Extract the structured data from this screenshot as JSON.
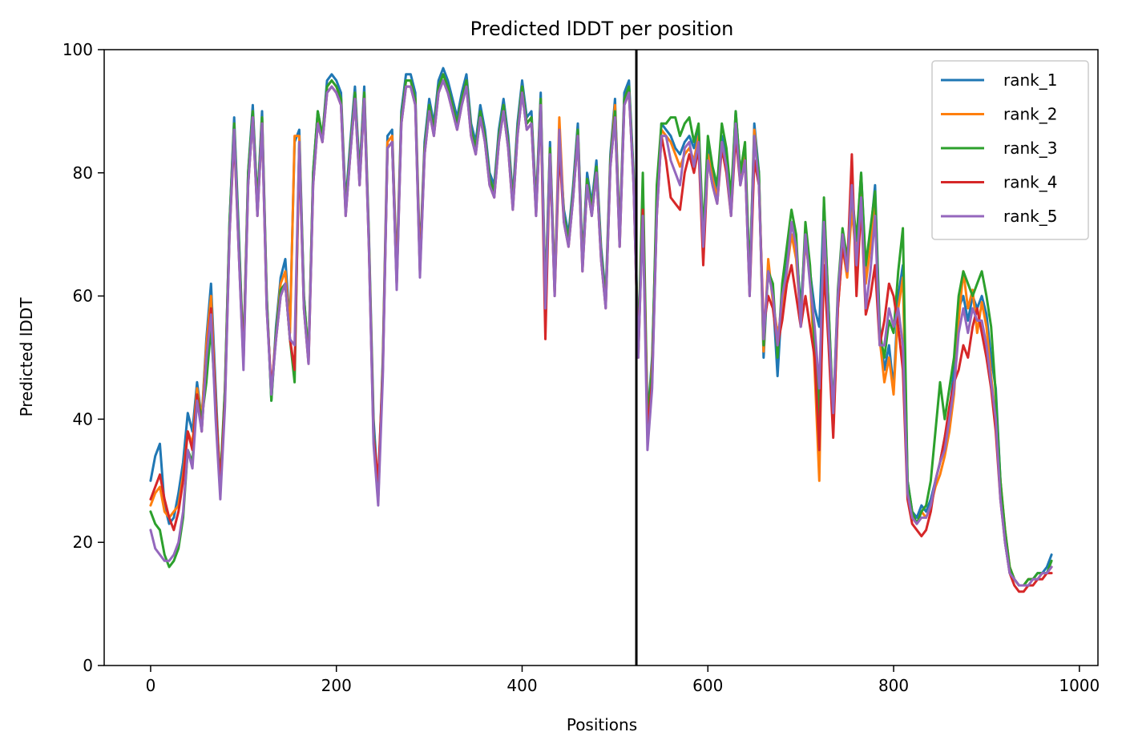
{
  "chart_data": {
    "type": "line",
    "title": "Predicted lDDT per position",
    "xlabel": "Positions",
    "ylabel": "Predicted lDDT",
    "xlim": [
      -50,
      1020
    ],
    "ylim": [
      0,
      100
    ],
    "xticks": [
      0,
      200,
      400,
      600,
      800,
      1000
    ],
    "yticks": [
      0,
      20,
      40,
      60,
      80,
      100
    ],
    "grid": false,
    "legend_position": "upper right",
    "vline": 523,
    "x": [
      0,
      5,
      10,
      15,
      20,
      25,
      30,
      35,
      40,
      45,
      50,
      55,
      60,
      65,
      70,
      75,
      80,
      85,
      90,
      95,
      100,
      105,
      110,
      115,
      120,
      125,
      130,
      135,
      140,
      145,
      150,
      155,
      160,
      165,
      170,
      175,
      180,
      185,
      190,
      195,
      200,
      205,
      210,
      215,
      220,
      225,
      230,
      235,
      240,
      245,
      250,
      255,
      260,
      265,
      270,
      275,
      280,
      285,
      290,
      295,
      300,
      305,
      310,
      315,
      320,
      325,
      330,
      335,
      340,
      345,
      350,
      355,
      360,
      365,
      370,
      375,
      380,
      385,
      390,
      395,
      400,
      405,
      410,
      415,
      420,
      425,
      430,
      435,
      440,
      445,
      450,
      455,
      460,
      465,
      470,
      475,
      480,
      485,
      490,
      495,
      500,
      505,
      510,
      515,
      520,
      525,
      530,
      535,
      540,
      545,
      550,
      555,
      560,
      565,
      570,
      575,
      580,
      585,
      590,
      595,
      600,
      605,
      610,
      615,
      620,
      625,
      630,
      635,
      640,
      645,
      650,
      655,
      660,
      665,
      670,
      675,
      680,
      685,
      690,
      695,
      700,
      705,
      710,
      715,
      720,
      725,
      730,
      735,
      740,
      745,
      750,
      755,
      760,
      765,
      770,
      775,
      780,
      785,
      790,
      795,
      800,
      805,
      810,
      815,
      820,
      825,
      830,
      835,
      840,
      845,
      850,
      855,
      860,
      865,
      870,
      875,
      880,
      885,
      890,
      895,
      900,
      905,
      910,
      915,
      920,
      925,
      930,
      935,
      940,
      945,
      950,
      955,
      960,
      965,
      970
    ],
    "series": [
      {
        "name": "rank_1",
        "color": "#1f77b4",
        "values": [
          30,
          34,
          36,
          26,
          23,
          24,
          28,
          33,
          41,
          38,
          46,
          40,
          53,
          62,
          45,
          28,
          45,
          72,
          89,
          70,
          50,
          80,
          91,
          75,
          90,
          60,
          43,
          55,
          63,
          66,
          55,
          85,
          87,
          60,
          50,
          80,
          90,
          86,
          95,
          96,
          95,
          93,
          75,
          85,
          94,
          80,
          94,
          70,
          40,
          28,
          50,
          86,
          87,
          64,
          90,
          96,
          96,
          93,
          66,
          85,
          92,
          88,
          95,
          97,
          95,
          92,
          89,
          93,
          96,
          88,
          85,
          91,
          87,
          80,
          78,
          87,
          92,
          86,
          76,
          88,
          95,
          89,
          90,
          75,
          93,
          60,
          85,
          62,
          85,
          74,
          70,
          78,
          88,
          66,
          80,
          75,
          82,
          68,
          60,
          83,
          92,
          70,
          93,
          95,
          80,
          52,
          75,
          40,
          50,
          75,
          88,
          87,
          86,
          84,
          83,
          85,
          86,
          84,
          87,
          67,
          84,
          80,
          77,
          86,
          82,
          75,
          90,
          80,
          84,
          62,
          88,
          80,
          50,
          65,
          60,
          47,
          60,
          65,
          72,
          68,
          58,
          70,
          64,
          58,
          55,
          75,
          58,
          40,
          60,
          70,
          65,
          76,
          68,
          80,
          64,
          70,
          78,
          55,
          48,
          52,
          45,
          60,
          65,
          30,
          25,
          24,
          26,
          25,
          27,
          30,
          33,
          37,
          41,
          48,
          58,
          60,
          56,
          60,
          58,
          60,
          57,
          50,
          45,
          30,
          20,
          15,
          14,
          13,
          13,
          14,
          14,
          15,
          15,
          16,
          18
        ]
      },
      {
        "name": "rank_2",
        "color": "#ff7f0e",
        "values": [
          26,
          28,
          29,
          25,
          24,
          25,
          26,
          31,
          38,
          36,
          45,
          40,
          52,
          60,
          43,
          29,
          44,
          71,
          88,
          68,
          50,
          79,
          90,
          74,
          89,
          59,
          44,
          54,
          62,
          64,
          54,
          86,
          86,
          59,
          50,
          79,
          89,
          86,
          94,
          95,
          94,
          92,
          74,
          84,
          93,
          79,
          93,
          69,
          38,
          27,
          49,
          85,
          86,
          63,
          89,
          95,
          95,
          92,
          65,
          84,
          91,
          87,
          94,
          96,
          94,
          91,
          88,
          92,
          95,
          87,
          84,
          90,
          86,
          79,
          77,
          86,
          91,
          85,
          75,
          87,
          94,
          88,
          89,
          74,
          92,
          59,
          84,
          61,
          89,
          73,
          69,
          77,
          87,
          65,
          79,
          74,
          81,
          67,
          59,
          82,
          91,
          69,
          92,
          94,
          79,
          51,
          74,
          39,
          49,
          74,
          87,
          86,
          85,
          83,
          81,
          83,
          84,
          82,
          86,
          66,
          83,
          79,
          76,
          85,
          81,
          74,
          89,
          79,
          83,
          61,
          87,
          79,
          51,
          66,
          59,
          54,
          57,
          64,
          70,
          66,
          56,
          69,
          63,
          48,
          30,
          72,
          56,
          38,
          58,
          68,
          63,
          74,
          66,
          78,
          62,
          68,
          76,
          53,
          46,
          50,
          44,
          58,
          63,
          29,
          24,
          23,
          25,
          24,
          26,
          29,
          31,
          34,
          38,
          44,
          56,
          64,
          58,
          61,
          54,
          59,
          55,
          47,
          40,
          30,
          22,
          16,
          14,
          13,
          13,
          14,
          14,
          14,
          15,
          15,
          16
        ]
      },
      {
        "name": "rank_3",
        "color": "#2ca02c",
        "values": [
          25,
          23,
          22,
          18,
          16,
          17,
          19,
          24,
          35,
          33,
          44,
          40,
          46,
          55,
          42,
          30,
          45,
          72,
          88,
          69,
          50,
          80,
          90,
          75,
          89,
          60,
          43,
          54,
          61,
          62,
          53,
          46,
          85,
          60,
          50,
          80,
          90,
          86,
          94,
          95,
          94,
          92,
          74,
          84,
          93,
          79,
          93,
          69,
          38,
          27,
          49,
          84,
          85,
          62,
          89,
          95,
          95,
          92,
          64,
          84,
          91,
          87,
          94,
          96,
          94,
          91,
          88,
          92,
          95,
          87,
          84,
          90,
          86,
          79,
          77,
          86,
          91,
          85,
          75,
          87,
          94,
          88,
          89,
          74,
          92,
          59,
          84,
          61,
          85,
          73,
          69,
          77,
          87,
          65,
          79,
          74,
          81,
          67,
          59,
          82,
          90,
          69,
          92,
          94,
          79,
          51,
          80,
          40,
          48,
          78,
          88,
          88,
          89,
          89,
          86,
          88,
          89,
          85,
          88,
          70,
          86,
          81,
          78,
          88,
          84,
          76,
          90,
          80,
          85,
          63,
          86,
          80,
          52,
          64,
          62,
          50,
          62,
          68,
          74,
          70,
          56,
          72,
          65,
          52,
          40,
          76,
          58,
          41,
          61,
          71,
          66,
          77,
          69,
          80,
          65,
          71,
          77,
          54,
          50,
          56,
          54,
          64,
          71,
          30,
          25,
          23,
          25,
          26,
          30,
          38,
          46,
          40,
          45,
          50,
          60,
          64,
          62,
          60,
          62,
          64,
          60,
          55,
          44,
          30,
          22,
          16,
          14,
          13,
          13,
          14,
          14,
          15,
          15,
          15,
          17
        ]
      },
      {
        "name": "rank_4",
        "color": "#d62728",
        "values": [
          27,
          29,
          31,
          27,
          24,
          22,
          25,
          30,
          38,
          35,
          44,
          38,
          50,
          58,
          42,
          29,
          43,
          70,
          86,
          67,
          49,
          78,
          89,
          73,
          88,
          58,
          45,
          53,
          60,
          62,
          53,
          48,
          84,
          58,
          49,
          78,
          88,
          85,
          93,
          94,
          93,
          91,
          73,
          83,
          92,
          78,
          92,
          68,
          37,
          30,
          48,
          84,
          85,
          62,
          88,
          94,
          94,
          91,
          64,
          83,
          90,
          86,
          93,
          95,
          93,
          90,
          87,
          91,
          94,
          86,
          83,
          89,
          85,
          78,
          76,
          85,
          90,
          84,
          74,
          86,
          93,
          87,
          88,
          73,
          91,
          53,
          83,
          60,
          84,
          72,
          68,
          76,
          86,
          64,
          78,
          73,
          80,
          66,
          58,
          81,
          89,
          68,
          91,
          93,
          78,
          50,
          74,
          38,
          46,
          73,
          86,
          82,
          76,
          75,
          74,
          80,
          83,
          80,
          84,
          65,
          82,
          78,
          75,
          84,
          80,
          73,
          86,
          78,
          82,
          60,
          82,
          78,
          55,
          60,
          58,
          52,
          56,
          62,
          65,
          60,
          55,
          60,
          55,
          50,
          35,
          65,
          52,
          37,
          58,
          68,
          64,
          83,
          60,
          75,
          57,
          60,
          65,
          52,
          56,
          62,
          60,
          55,
          48,
          27,
          23,
          22,
          21,
          22,
          25,
          30,
          33,
          37,
          42,
          46,
          48,
          52,
          50,
          55,
          58,
          54,
          50,
          45,
          38,
          27,
          20,
          15,
          13,
          12,
          12,
          13,
          13,
          14,
          14,
          15,
          15
        ]
      },
      {
        "name": "rank_5",
        "color": "#9467bd",
        "values": [
          22,
          19,
          18,
          17,
          17,
          18,
          20,
          25,
          35,
          32,
          43,
          38,
          50,
          57,
          40,
          27,
          42,
          70,
          87,
          67,
          48,
          78,
          89,
          73,
          88,
          58,
          44,
          53,
          60,
          62,
          53,
          52,
          85,
          58,
          49,
          78,
          88,
          85,
          93,
          94,
          93,
          91,
          73,
          83,
          92,
          78,
          92,
          68,
          36,
          26,
          47,
          84,
          85,
          61,
          88,
          94,
          94,
          91,
          63,
          83,
          90,
          86,
          93,
          95,
          93,
          90,
          87,
          91,
          94,
          86,
          83,
          89,
          85,
          78,
          76,
          85,
          90,
          84,
          74,
          86,
          93,
          87,
          88,
          73,
          91,
          58,
          83,
          60,
          87,
          72,
          68,
          76,
          86,
          64,
          78,
          73,
          80,
          66,
          58,
          81,
          89,
          68,
          91,
          93,
          78,
          50,
          73,
          35,
          45,
          73,
          86,
          86,
          82,
          80,
          78,
          84,
          85,
          81,
          85,
          68,
          82,
          78,
          75,
          85,
          81,
          73,
          88,
          78,
          82,
          60,
          86,
          78,
          53,
          64,
          60,
          52,
          60,
          64,
          72,
          68,
          55,
          70,
          62,
          55,
          45,
          72,
          55,
          41,
          60,
          70,
          64,
          78,
          65,
          76,
          58,
          64,
          73,
          52,
          52,
          58,
          55,
          58,
          52,
          28,
          24,
          23,
          24,
          24,
          26,
          30,
          33,
          35,
          40,
          45,
          54,
          58,
          54,
          58,
          56,
          56,
          52,
          46,
          40,
          27,
          20,
          15,
          14,
          13,
          13,
          13,
          14,
          14,
          15,
          15,
          16
        ]
      }
    ]
  }
}
